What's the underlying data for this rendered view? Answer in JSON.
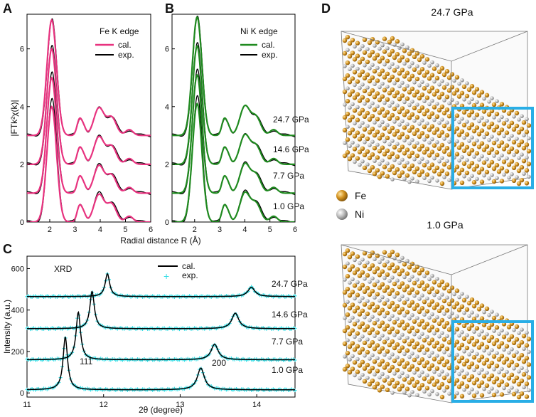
{
  "panel_labels": {
    "a": "A",
    "b": "B",
    "c": "C",
    "d": "D"
  },
  "colors": {
    "fe_cal": "#e8327f",
    "ni_cal": "#1f8a1f",
    "exp": "#000000",
    "xrd_exp": "#33dde5",
    "xrd_cal": "#000000",
    "fe_atom": "#c8881a",
    "ni_atom": "#b8b8b8",
    "inset_box": "#29aee6"
  },
  "pressures": [
    "24.7 GPa",
    "14.6 GPa",
    "7.7 GPa",
    "1.0 GPa"
  ],
  "chart_data": [
    {
      "type": "line",
      "panel": "A",
      "title": "Fe K edge",
      "xlabel": "Radial distance R (Å)",
      "ylabel": "|FTk²χ(k)|",
      "xlim": [
        1.1,
        6.0
      ],
      "ylim": [
        0,
        7.2
      ],
      "xticks": [
        "2",
        "3",
        "4",
        "5",
        "6"
      ],
      "yticks": [
        "0",
        "2",
        "4",
        "6"
      ],
      "legend": [
        "cal.",
        "exp."
      ],
      "offsets": [
        3.0,
        2.0,
        1.0,
        0.0
      ],
      "peaks": [
        {
          "r": 2.08,
          "h": 4.0
        },
        {
          "r": 3.18,
          "h": 0.55
        },
        {
          "r": 3.35,
          "h": 0.25
        },
        {
          "r": 3.95,
          "h": 0.95
        },
        {
          "r": 4.45,
          "h": 0.62
        },
        {
          "r": 5.15,
          "h": 0.2
        }
      ],
      "series": [
        {
          "name": "24.7 GPa",
          "offset": 3.0
        },
        {
          "name": "14.6 GPa",
          "offset": 2.0
        },
        {
          "name": "7.7 GPa",
          "offset": 1.0
        },
        {
          "name": "1.0 GPa",
          "offset": 0.0
        }
      ]
    },
    {
      "type": "line",
      "panel": "B",
      "title": "Ni K edge",
      "xlabel": "",
      "ylabel": "",
      "xlim": [
        1.1,
        6.0
      ],
      "ylim": [
        0,
        7.2
      ],
      "xticks": [
        "2",
        "3",
        "4",
        "5",
        "6"
      ],
      "yticks": [
        "0",
        "2",
        "4",
        "6"
      ],
      "legend": [
        "cal.",
        "exp."
      ],
      "offsets": [
        3.0,
        2.0,
        1.0,
        0.0
      ],
      "peaks": [
        {
          "r": 2.1,
          "h": 4.1
        },
        {
          "r": 3.18,
          "h": 0.55
        },
        {
          "r": 3.35,
          "h": 0.25
        },
        {
          "r": 4.0,
          "h": 1.0
        },
        {
          "r": 4.45,
          "h": 0.62
        },
        {
          "r": 5.15,
          "h": 0.2
        }
      ],
      "series": [
        {
          "name": "24.7 GPa",
          "offset": 3.0
        },
        {
          "name": "14.6 GPa",
          "offset": 2.0
        },
        {
          "name": "7.7 GPa",
          "offset": 1.0
        },
        {
          "name": "1.0 GPa",
          "offset": 0.0
        }
      ]
    },
    {
      "type": "line",
      "panel": "C",
      "title": "XRD",
      "xlabel": "2θ (degree)",
      "ylabel": "Intensity (a.u.)",
      "xlim": [
        11,
        14.5
      ],
      "ylim": [
        -20,
        660
      ],
      "xticks": [
        "11",
        "12",
        "13",
        "14"
      ],
      "yticks": [
        "0",
        "200",
        "400",
        "600"
      ],
      "legend": [
        "cal.",
        "exp."
      ],
      "peak_labels": [
        "111",
        "200"
      ],
      "series": [
        {
          "name": "24.7 GPa",
          "baseline": 465,
          "peaks": [
            {
              "x": 12.05,
              "h": 110
            },
            {
              "x": 13.93,
              "h": 45
            }
          ]
        },
        {
          "name": "14.6 GPa",
          "baseline": 310,
          "peaks": [
            {
              "x": 11.85,
              "h": 180
            },
            {
              "x": 13.72,
              "h": 75
            }
          ]
        },
        {
          "name": "7.7 GPa",
          "baseline": 160,
          "peaks": [
            {
              "x": 11.67,
              "h": 230
            },
            {
              "x": 13.45,
              "h": 75
            }
          ]
        },
        {
          "name": "1.0 GPa",
          "baseline": 15,
          "peaks": [
            {
              "x": 11.5,
              "h": 255
            },
            {
              "x": 13.27,
              "h": 105
            }
          ]
        }
      ]
    }
  ],
  "panel_d": {
    "top_label": "24.7 GPa",
    "bottom_label": "1.0 GPa",
    "legend": [
      {
        "name": "Fe"
      },
      {
        "name": "Ni"
      }
    ]
  }
}
